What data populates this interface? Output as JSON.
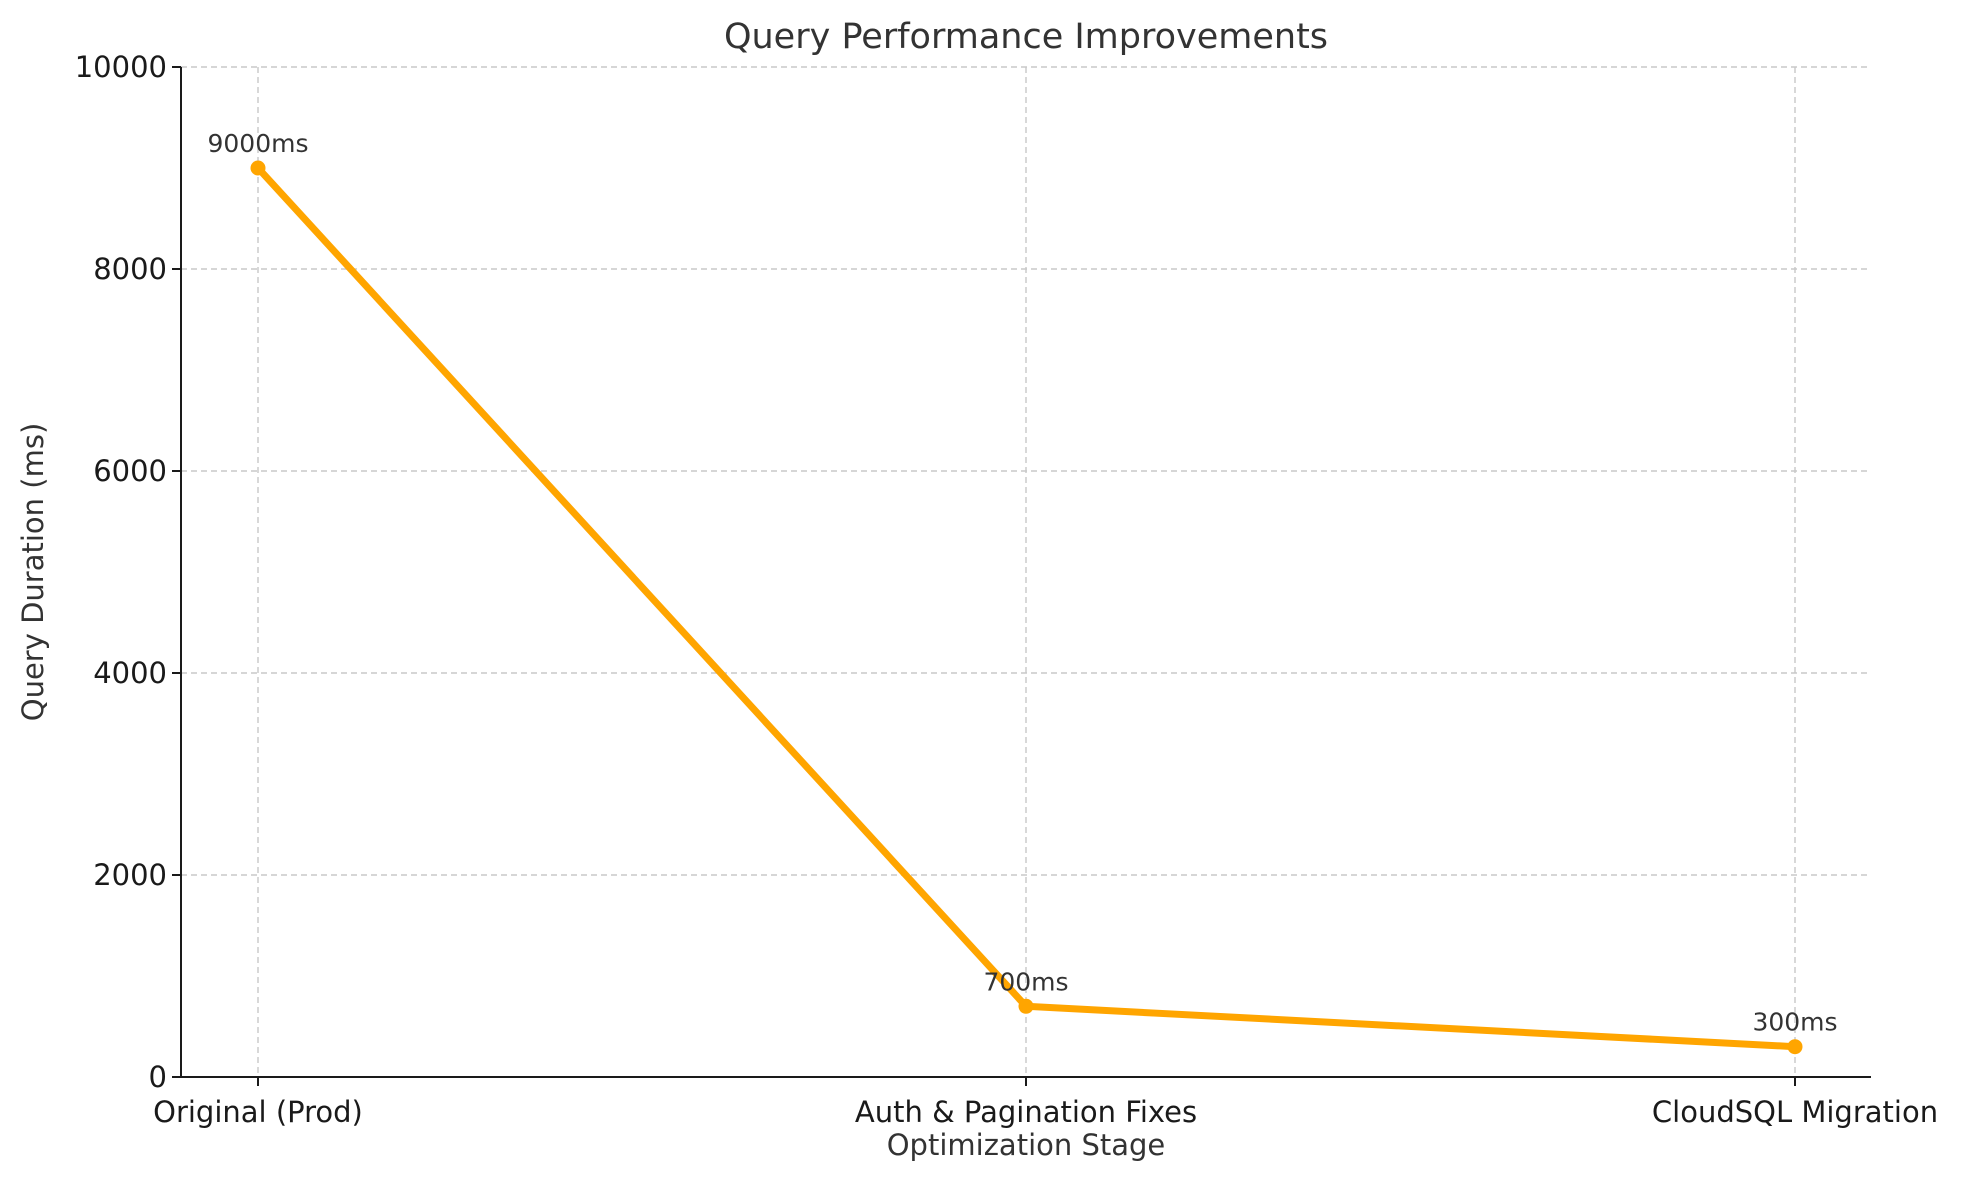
{
  "chart_data": {
    "type": "line",
    "title": "Query Performance Improvements",
    "xlabel": "Optimization Stage",
    "ylabel": "Query Duration (ms)",
    "categories": [
      "Original (Prod)",
      "Auth & Pagination Fixes",
      "CloudSQL Migration"
    ],
    "series": [
      {
        "values": [
          9000,
          700,
          300
        ],
        "data_labels": [
          "9000ms",
          "700ms",
          "300ms"
        ],
        "color": "#FFA500"
      }
    ],
    "ylim": [
      0,
      10000
    ],
    "yticks": [
      0,
      2000,
      4000,
      6000,
      8000,
      10000
    ],
    "ytick_labels": [
      "0",
      "2000",
      "4000",
      "6000",
      "8000",
      "10000"
    ],
    "grid": true,
    "legend": "none"
  }
}
